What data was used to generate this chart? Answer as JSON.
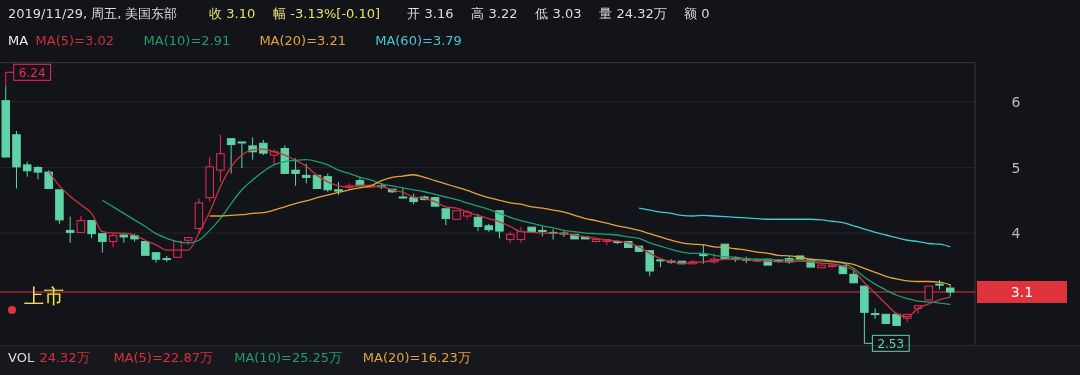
{
  "chart_data": {
    "type": "candlestick",
    "title": "2019/11/29, 周五, 美国东部",
    "annotations": [
      "收 3.10",
      "幅 -3.13%[-0.10]",
      "开 3.16",
      "高 3.22",
      "低 3.03",
      "量 24.32万",
      "额 0",
      "VOL",
      "24.32万",
      "MA(5)=22.87万",
      "MA(10)=25.25万",
      "MA(20)=16.23万",
      "上市",
      "6.24",
      "2.53"
    ],
    "categories": [
      null,
      null,
      null,
      null,
      null,
      null,
      null,
      null,
      null,
      null,
      null,
      null,
      null,
      null,
      null,
      null,
      null,
      null,
      null,
      null,
      null,
      null,
      null,
      null,
      null,
      null,
      null,
      null,
      null,
      null,
      null,
      null,
      null,
      null,
      null,
      null,
      null,
      null,
      null,
      null,
      null,
      null,
      null,
      null,
      null,
      null,
      null,
      null,
      null,
      null,
      null,
      null,
      null,
      null,
      null,
      null,
      null,
      null,
      null,
      null,
      null,
      null,
      null,
      null,
      null,
      null,
      null,
      null,
      null,
      null,
      null,
      null,
      null,
      null,
      null,
      null,
      null,
      null,
      null,
      null,
      null,
      null,
      null,
      null,
      null,
      null,
      null,
      null,
      null
    ],
    "ohlc": [
      [
        6.02,
        6.24,
        5.16,
        5.16
      ],
      [
        5.5,
        5.56,
        4.68,
        5.01
      ],
      [
        5.04,
        5.09,
        4.86,
        4.95
      ],
      [
        5.0,
        5.02,
        4.82,
        4.93
      ],
      [
        4.93,
        4.96,
        4.68,
        4.68
      ],
      [
        4.66,
        4.66,
        4.14,
        4.2
      ],
      [
        4.04,
        4.25,
        3.85,
        4.01
      ],
      [
        4.01,
        4.26,
        4.01,
        4.19
      ],
      [
        4.19,
        4.19,
        3.92,
        3.99
      ],
      [
        3.99,
        3.99,
        3.7,
        3.87
      ],
      [
        3.87,
        4.0,
        3.78,
        3.96
      ],
      [
        3.97,
        3.98,
        3.85,
        3.94
      ],
      [
        3.96,
        3.99,
        3.87,
        3.91
      ],
      [
        3.87,
        3.87,
        3.66,
        3.66
      ],
      [
        3.7,
        3.7,
        3.55,
        3.6
      ],
      [
        3.61,
        3.65,
        3.56,
        3.6
      ],
      [
        3.63,
        3.87,
        3.63,
        3.87
      ],
      [
        3.89,
        3.94,
        3.82,
        3.93
      ],
      [
        4.07,
        4.53,
        3.99,
        4.46
      ],
      [
        4.54,
        5.16,
        4.48,
        5.01
      ],
      [
        4.96,
        5.5,
        4.78,
        5.21
      ],
      [
        5.44,
        5.44,
        4.91,
        5.35
      ],
      [
        5.39,
        5.39,
        4.99,
        5.38
      ],
      [
        5.33,
        5.46,
        5.12,
        5.24
      ],
      [
        5.37,
        5.42,
        5.19,
        5.22
      ],
      [
        5.19,
        5.28,
        5.05,
        5.24
      ],
      [
        5.29,
        5.34,
        4.91,
        4.91
      ],
      [
        4.96,
        5.14,
        4.72,
        4.91
      ],
      [
        4.88,
        5.06,
        4.76,
        4.85
      ],
      [
        4.88,
        4.88,
        4.68,
        4.68
      ],
      [
        4.86,
        4.91,
        4.63,
        4.66
      ],
      [
        4.66,
        4.78,
        4.58,
        4.64
      ],
      [
        4.7,
        4.76,
        4.66,
        4.72
      ],
      [
        4.8,
        4.86,
        4.72,
        4.72
      ],
      [
        4.7,
        4.73,
        4.7,
        4.73
      ],
      [
        4.72,
        4.76,
        4.67,
        4.71
      ],
      [
        4.67,
        4.67,
        4.61,
        4.63
      ],
      [
        4.55,
        4.69,
        4.53,
        4.54
      ],
      [
        4.54,
        4.6,
        4.44,
        4.48
      ],
      [
        4.55,
        4.57,
        4.5,
        4.51
      ],
      [
        4.54,
        4.55,
        4.41,
        4.41
      ],
      [
        4.37,
        4.37,
        4.12,
        4.22
      ],
      [
        4.21,
        4.35,
        4.21,
        4.34
      ],
      [
        4.26,
        4.35,
        4.21,
        4.32
      ],
      [
        4.24,
        4.29,
        4.03,
        4.1
      ],
      [
        4.11,
        4.14,
        4.02,
        4.05
      ],
      [
        4.34,
        4.34,
        3.92,
        4.03
      ],
      [
        3.9,
        4.02,
        3.85,
        3.98
      ],
      [
        3.9,
        4.09,
        3.85,
        4.02
      ],
      [
        4.09,
        4.09,
        4.02,
        4.02
      ],
      [
        4.04,
        4.1,
        3.95,
        4.03
      ],
      [
        4.01,
        4.06,
        3.9,
        4.0
      ],
      [
        4.0,
        4.04,
        3.94,
        3.99
      ],
      [
        3.98,
        3.98,
        3.91,
        3.91
      ],
      [
        3.94,
        3.94,
        3.91,
        3.91
      ],
      [
        3.87,
        3.9,
        3.87,
        3.9
      ],
      [
        3.87,
        3.9,
        3.82,
        3.9
      ],
      [
        3.87,
        3.89,
        3.83,
        3.86
      ],
      [
        3.87,
        3.87,
        3.78,
        3.78
      ],
      [
        3.8,
        3.8,
        3.72,
        3.72
      ],
      [
        3.73,
        3.73,
        3.34,
        3.42
      ],
      [
        3.59,
        3.59,
        3.48,
        3.58
      ],
      [
        3.57,
        3.6,
        3.53,
        3.56
      ],
      [
        3.57,
        3.57,
        3.53,
        3.53
      ],
      [
        3.53,
        3.59,
        3.53,
        3.56
      ],
      [
        3.67,
        3.82,
        3.53,
        3.66
      ],
      [
        3.56,
        3.69,
        3.53,
        3.6
      ],
      [
        3.83,
        3.83,
        3.59,
        3.61
      ],
      [
        3.61,
        3.64,
        3.56,
        3.6
      ],
      [
        3.6,
        3.64,
        3.54,
        3.59
      ],
      [
        3.59,
        3.61,
        3.56,
        3.58
      ],
      [
        3.6,
        3.6,
        3.51,
        3.51
      ],
      [
        3.58,
        3.6,
        3.55,
        3.57
      ],
      [
        3.61,
        3.65,
        3.53,
        3.56
      ],
      [
        3.65,
        3.65,
        3.6,
        3.6
      ],
      [
        3.59,
        3.61,
        3.48,
        3.48
      ],
      [
        3.47,
        3.51,
        3.47,
        3.51
      ],
      [
        3.49,
        3.53,
        3.47,
        3.51
      ],
      [
        3.5,
        3.5,
        3.38,
        3.38
      ],
      [
        3.37,
        3.42,
        3.24,
        3.24
      ],
      [
        3.19,
        3.19,
        2.53,
        2.79
      ],
      [
        2.77,
        2.85,
        2.69,
        2.76
      ],
      [
        2.76,
        2.76,
        2.62,
        2.62
      ],
      [
        2.76,
        2.76,
        2.59,
        2.59
      ],
      [
        2.7,
        2.76,
        2.64,
        2.76
      ],
      [
        2.85,
        2.9,
        2.77,
        2.89
      ],
      [
        2.98,
        3.19,
        2.98,
        3.19
      ],
      [
        3.22,
        3.28,
        3.14,
        3.21
      ],
      [
        3.16,
        3.22,
        3.03,
        3.1
      ]
    ],
    "series": [
      {
        "name": "MA(5)=3.02",
        "type": "line",
        "color": "#c7343c",
        "values": [
          null,
          null,
          null,
          null,
          4.94,
          4.72,
          4.56,
          4.43,
          4.3,
          4.02,
          4.0,
          4.0,
          3.97,
          3.89,
          3.82,
          3.74,
          3.74,
          3.74,
          4.0,
          4.32,
          4.71,
          5.01,
          5.19,
          5.27,
          5.28,
          5.24,
          5.19,
          5.11,
          5.02,
          4.88,
          4.78,
          4.72,
          4.7,
          4.73,
          4.72,
          4.71,
          4.66,
          4.62,
          4.55,
          4.53,
          4.48,
          4.4,
          4.38,
          4.32,
          4.27,
          4.22,
          4.17,
          4.1,
          4.02,
          4.01,
          4.0,
          4.0,
          3.99,
          3.97,
          3.94,
          3.92,
          3.89,
          3.88,
          3.85,
          3.79,
          3.69,
          3.61,
          3.56,
          3.54,
          3.55,
          3.56,
          3.58,
          3.6,
          3.6,
          3.59,
          3.58,
          3.57,
          3.56,
          3.56,
          3.57,
          3.56,
          3.54,
          3.53,
          3.5,
          3.43,
          3.24,
          3.08,
          2.92,
          2.77,
          2.72,
          2.85,
          2.92,
          2.98,
          3.02
        ]
      },
      {
        "name": "MA(10)=2.91",
        "type": "line",
        "color": "#1f9d6e",
        "values": [
          null,
          null,
          null,
          null,
          null,
          null,
          null,
          null,
          null,
          4.5,
          4.4,
          4.3,
          4.2,
          4.1,
          3.99,
          3.92,
          3.87,
          3.85,
          3.89,
          4.04,
          4.22,
          4.45,
          4.66,
          4.81,
          4.94,
          5.04,
          5.09,
          5.11,
          5.12,
          5.09,
          5.04,
          4.96,
          4.91,
          4.85,
          4.81,
          4.75,
          4.72,
          4.69,
          4.66,
          4.63,
          4.59,
          4.55,
          4.51,
          4.46,
          4.41,
          4.36,
          4.3,
          4.24,
          4.19,
          4.15,
          4.11,
          4.08,
          4.04,
          4.02,
          4.0,
          3.99,
          3.98,
          3.97,
          3.94,
          3.92,
          3.85,
          3.8,
          3.75,
          3.71,
          3.69,
          3.69,
          3.66,
          3.64,
          3.63,
          3.61,
          3.6,
          3.6,
          3.59,
          3.59,
          3.59,
          3.58,
          3.57,
          3.56,
          3.54,
          3.46,
          3.33,
          3.22,
          3.13,
          3.05,
          3.0,
          2.96,
          2.95,
          2.93,
          2.91
        ]
      },
      {
        "name": "MA(20)=3.21",
        "type": "line",
        "color": "#e6a334",
        "values": [
          null,
          null,
          null,
          null,
          null,
          null,
          null,
          null,
          null,
          null,
          null,
          null,
          null,
          null,
          null,
          null,
          null,
          null,
          null,
          4.26,
          4.26,
          4.27,
          4.28,
          4.3,
          4.31,
          4.35,
          4.4,
          4.45,
          4.49,
          4.54,
          4.58,
          4.62,
          4.66,
          4.69,
          4.72,
          4.8,
          4.85,
          4.87,
          4.89,
          4.85,
          4.8,
          4.75,
          4.7,
          4.65,
          4.59,
          4.54,
          4.5,
          4.46,
          4.44,
          4.4,
          4.38,
          4.35,
          4.32,
          4.27,
          4.22,
          4.19,
          4.15,
          4.11,
          4.08,
          4.04,
          3.99,
          3.94,
          3.89,
          3.85,
          3.83,
          3.82,
          3.79,
          3.78,
          3.76,
          3.74,
          3.71,
          3.69,
          3.66,
          3.65,
          3.63,
          3.6,
          3.59,
          3.57,
          3.55,
          3.52,
          3.46,
          3.4,
          3.34,
          3.3,
          3.27,
          3.26,
          3.26,
          3.25,
          3.21
        ]
      },
      {
        "name": "MA(60)=3.79",
        "type": "line",
        "color": "#3fc9d4",
        "values": [
          null,
          null,
          null,
          null,
          null,
          null,
          null,
          null,
          null,
          null,
          null,
          null,
          null,
          null,
          null,
          null,
          null,
          null,
          null,
          null,
          null,
          null,
          null,
          null,
          null,
          null,
          null,
          null,
          null,
          null,
          null,
          null,
          null,
          null,
          null,
          null,
          null,
          null,
          null,
          null,
          null,
          null,
          null,
          null,
          null,
          null,
          null,
          null,
          null,
          null,
          null,
          null,
          null,
          null,
          null,
          null,
          null,
          null,
          null,
          4.38,
          4.35,
          4.32,
          4.3,
          4.27,
          4.26,
          4.27,
          4.26,
          4.25,
          4.24,
          4.23,
          4.22,
          4.21,
          4.21,
          4.21,
          4.21,
          4.21,
          4.2,
          4.18,
          4.16,
          4.11,
          4.06,
          4.01,
          3.97,
          3.93,
          3.89,
          3.87,
          3.84,
          3.83,
          3.79
        ]
      }
    ],
    "ylim": [
      2.3,
      6.6
    ],
    "yticks": [
      4,
      5,
      6
    ],
    "grid": "y",
    "ref_lines": [
      {
        "axis": "y",
        "value": 3.1,
        "label": "3.1",
        "color": "#e0323c"
      }
    ],
    "legend": "top",
    "legend_title": "MA"
  }
}
